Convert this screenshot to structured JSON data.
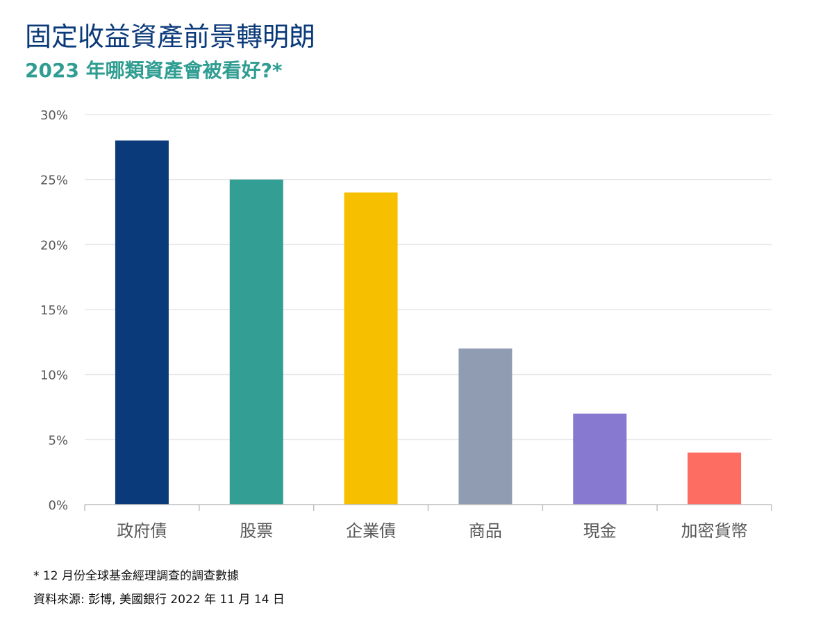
{
  "header": {
    "title": "固定收益資產前景轉明朗",
    "subtitle": "2023 年哪類資產會被看好?*"
  },
  "chart_data": {
    "type": "bar",
    "categories": [
      "政府債",
      "股票",
      "企業債",
      "商品",
      "現金",
      "加密貨幣"
    ],
    "values": [
      28,
      25,
      24,
      12,
      7,
      4
    ],
    "colors": [
      "#0b3a7a",
      "#339e94",
      "#f6bf00",
      "#909cb2",
      "#8779cf",
      "#fe6d61"
    ],
    "ylim": [
      0,
      30
    ],
    "yticks": [
      0,
      5,
      10,
      15,
      20,
      25,
      30
    ],
    "ytick_labels": [
      "0%",
      "5%",
      "10%",
      "15%",
      "20%",
      "25%",
      "30%"
    ],
    "grid": true,
    "legend": "none"
  },
  "footnotes": {
    "note": "* 12 月份全球基金經理調查的調查數據",
    "source": "資料來源: 彭博, 美國銀行 2022 年 11 月 14 日"
  }
}
